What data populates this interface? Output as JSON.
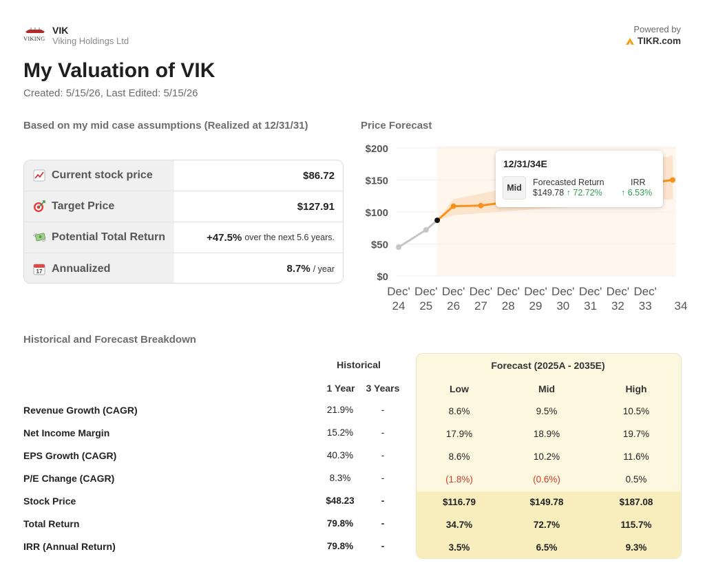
{
  "header": {
    "ticker": "VIK",
    "company": "Viking Holdings Ltd",
    "logo_text": "VIKING",
    "powered_by": "Powered by",
    "powered_brand": "TIKR.com"
  },
  "title": "My Valuation of VIK",
  "subtitle": "Created: 5/15/26, Last Edited: 5/15/26",
  "summary": {
    "heading": "Based on my mid case assumptions (Realized at 12/31/31)",
    "rows": [
      {
        "icon": "chart-increasing-icon",
        "label": "Current stock price",
        "value": "$86.72",
        "suffix": ""
      },
      {
        "icon": "target-icon",
        "label": "Target Price",
        "value": "$127.91",
        "suffix": ""
      },
      {
        "icon": "money-wings-icon",
        "label": "Potential Total Return",
        "value": "+47.5%",
        "suffix": "over the next 5.6 years."
      },
      {
        "icon": "calendar-icon",
        "label": "Annualized",
        "value": "8.7%",
        "suffix": "/ year"
      }
    ]
  },
  "chart_data": {
    "type": "line",
    "title": "Price Forecast",
    "y_ticks": [
      "$200",
      "$150",
      "$100",
      "$50",
      "$0"
    ],
    "ylim": [
      0,
      200
    ],
    "x_ticks": [
      {
        "line1": "Dec'",
        "line2": "24"
      },
      {
        "line1": "Dec'",
        "line2": "25"
      },
      {
        "line1": "Dec'",
        "line2": "26"
      },
      {
        "line1": "Dec'",
        "line2": "27"
      },
      {
        "line1": "Dec'",
        "line2": "28"
      },
      {
        "line1": "Dec'",
        "line2": "29"
      },
      {
        "line1": "Dec'",
        "line2": "30"
      },
      {
        "line1": "Dec'",
        "line2": "31"
      },
      {
        "line1": "Dec'",
        "line2": "32"
      },
      {
        "line1": "Dec'",
        "line2": "33"
      },
      {
        "line1": "",
        "line2": "34"
      }
    ],
    "historical": [
      {
        "x": 2024.96,
        "y": 45
      },
      {
        "x": 2025.96,
        "y": 72
      },
      {
        "x": 2026.37,
        "y": 87
      }
    ],
    "forecast_mid": [
      {
        "x": 2026.96,
        "y": 109
      },
      {
        "x": 2027.96,
        "y": 110
      },
      {
        "x": 2034.96,
        "y": 150
      }
    ],
    "band_low": [
      {
        "x": 2026.37,
        "y": 87
      },
      {
        "x": 2026.96,
        "y": 95
      },
      {
        "x": 2034.96,
        "y": 120
      }
    ],
    "band_high": [
      {
        "x": 2026.37,
        "y": 87
      },
      {
        "x": 2026.96,
        "y": 120
      },
      {
        "x": 2034.96,
        "y": 188
      }
    ],
    "colors": {
      "historical": "#c8c4c4",
      "forecast": "#f5921e",
      "band": "#fbe0c6",
      "region": "#fff6ee",
      "today": "#111111"
    },
    "tooltip": {
      "date": "12/31/34E",
      "case": "Mid",
      "return_label": "Forecasted Return",
      "return_price": "$149.78",
      "return_pct": "72.72%",
      "irr_label": "IRR",
      "irr_value": "6.53%"
    }
  },
  "breakdown": {
    "heading": "Historical and Forecast Breakdown",
    "historical_header": "Historical",
    "forecast_header": "Forecast (2025A - 2035E)",
    "columns": [
      "1 Year",
      "3 Years",
      "Low",
      "Mid",
      "High"
    ],
    "rows": [
      {
        "label": "Revenue Growth (CAGR)",
        "y1": "21.9%",
        "y3": "-",
        "low": "8.6%",
        "mid": "9.5%",
        "high": "10.5%"
      },
      {
        "label": "Net Income Margin",
        "y1": "15.2%",
        "y3": "-",
        "low": "17.9%",
        "mid": "18.9%",
        "high": "19.7%"
      },
      {
        "label": "EPS Growth (CAGR)",
        "y1": "40.3%",
        "y3": "-",
        "low": "8.6%",
        "mid": "10.2%",
        "high": "11.6%"
      },
      {
        "label": "P/E Change (CAGR)",
        "y1": "8.3%",
        "y3": "-",
        "low": "(1.8%)",
        "mid": "(0.6%)",
        "high": "0.5%"
      },
      {
        "label": "Stock Price",
        "y1": "$48.23",
        "y3": "-",
        "low": "$116.79",
        "mid": "$149.78",
        "high": "$187.08"
      },
      {
        "label": "Total Return",
        "y1": "79.8%",
        "y3": "-",
        "low": "34.7%",
        "mid": "72.7%",
        "high": "115.7%"
      },
      {
        "label": "IRR (Annual Return)",
        "y1": "79.8%",
        "y3": "-",
        "low": "3.5%",
        "mid": "6.5%",
        "high": "9.3%"
      }
    ]
  }
}
